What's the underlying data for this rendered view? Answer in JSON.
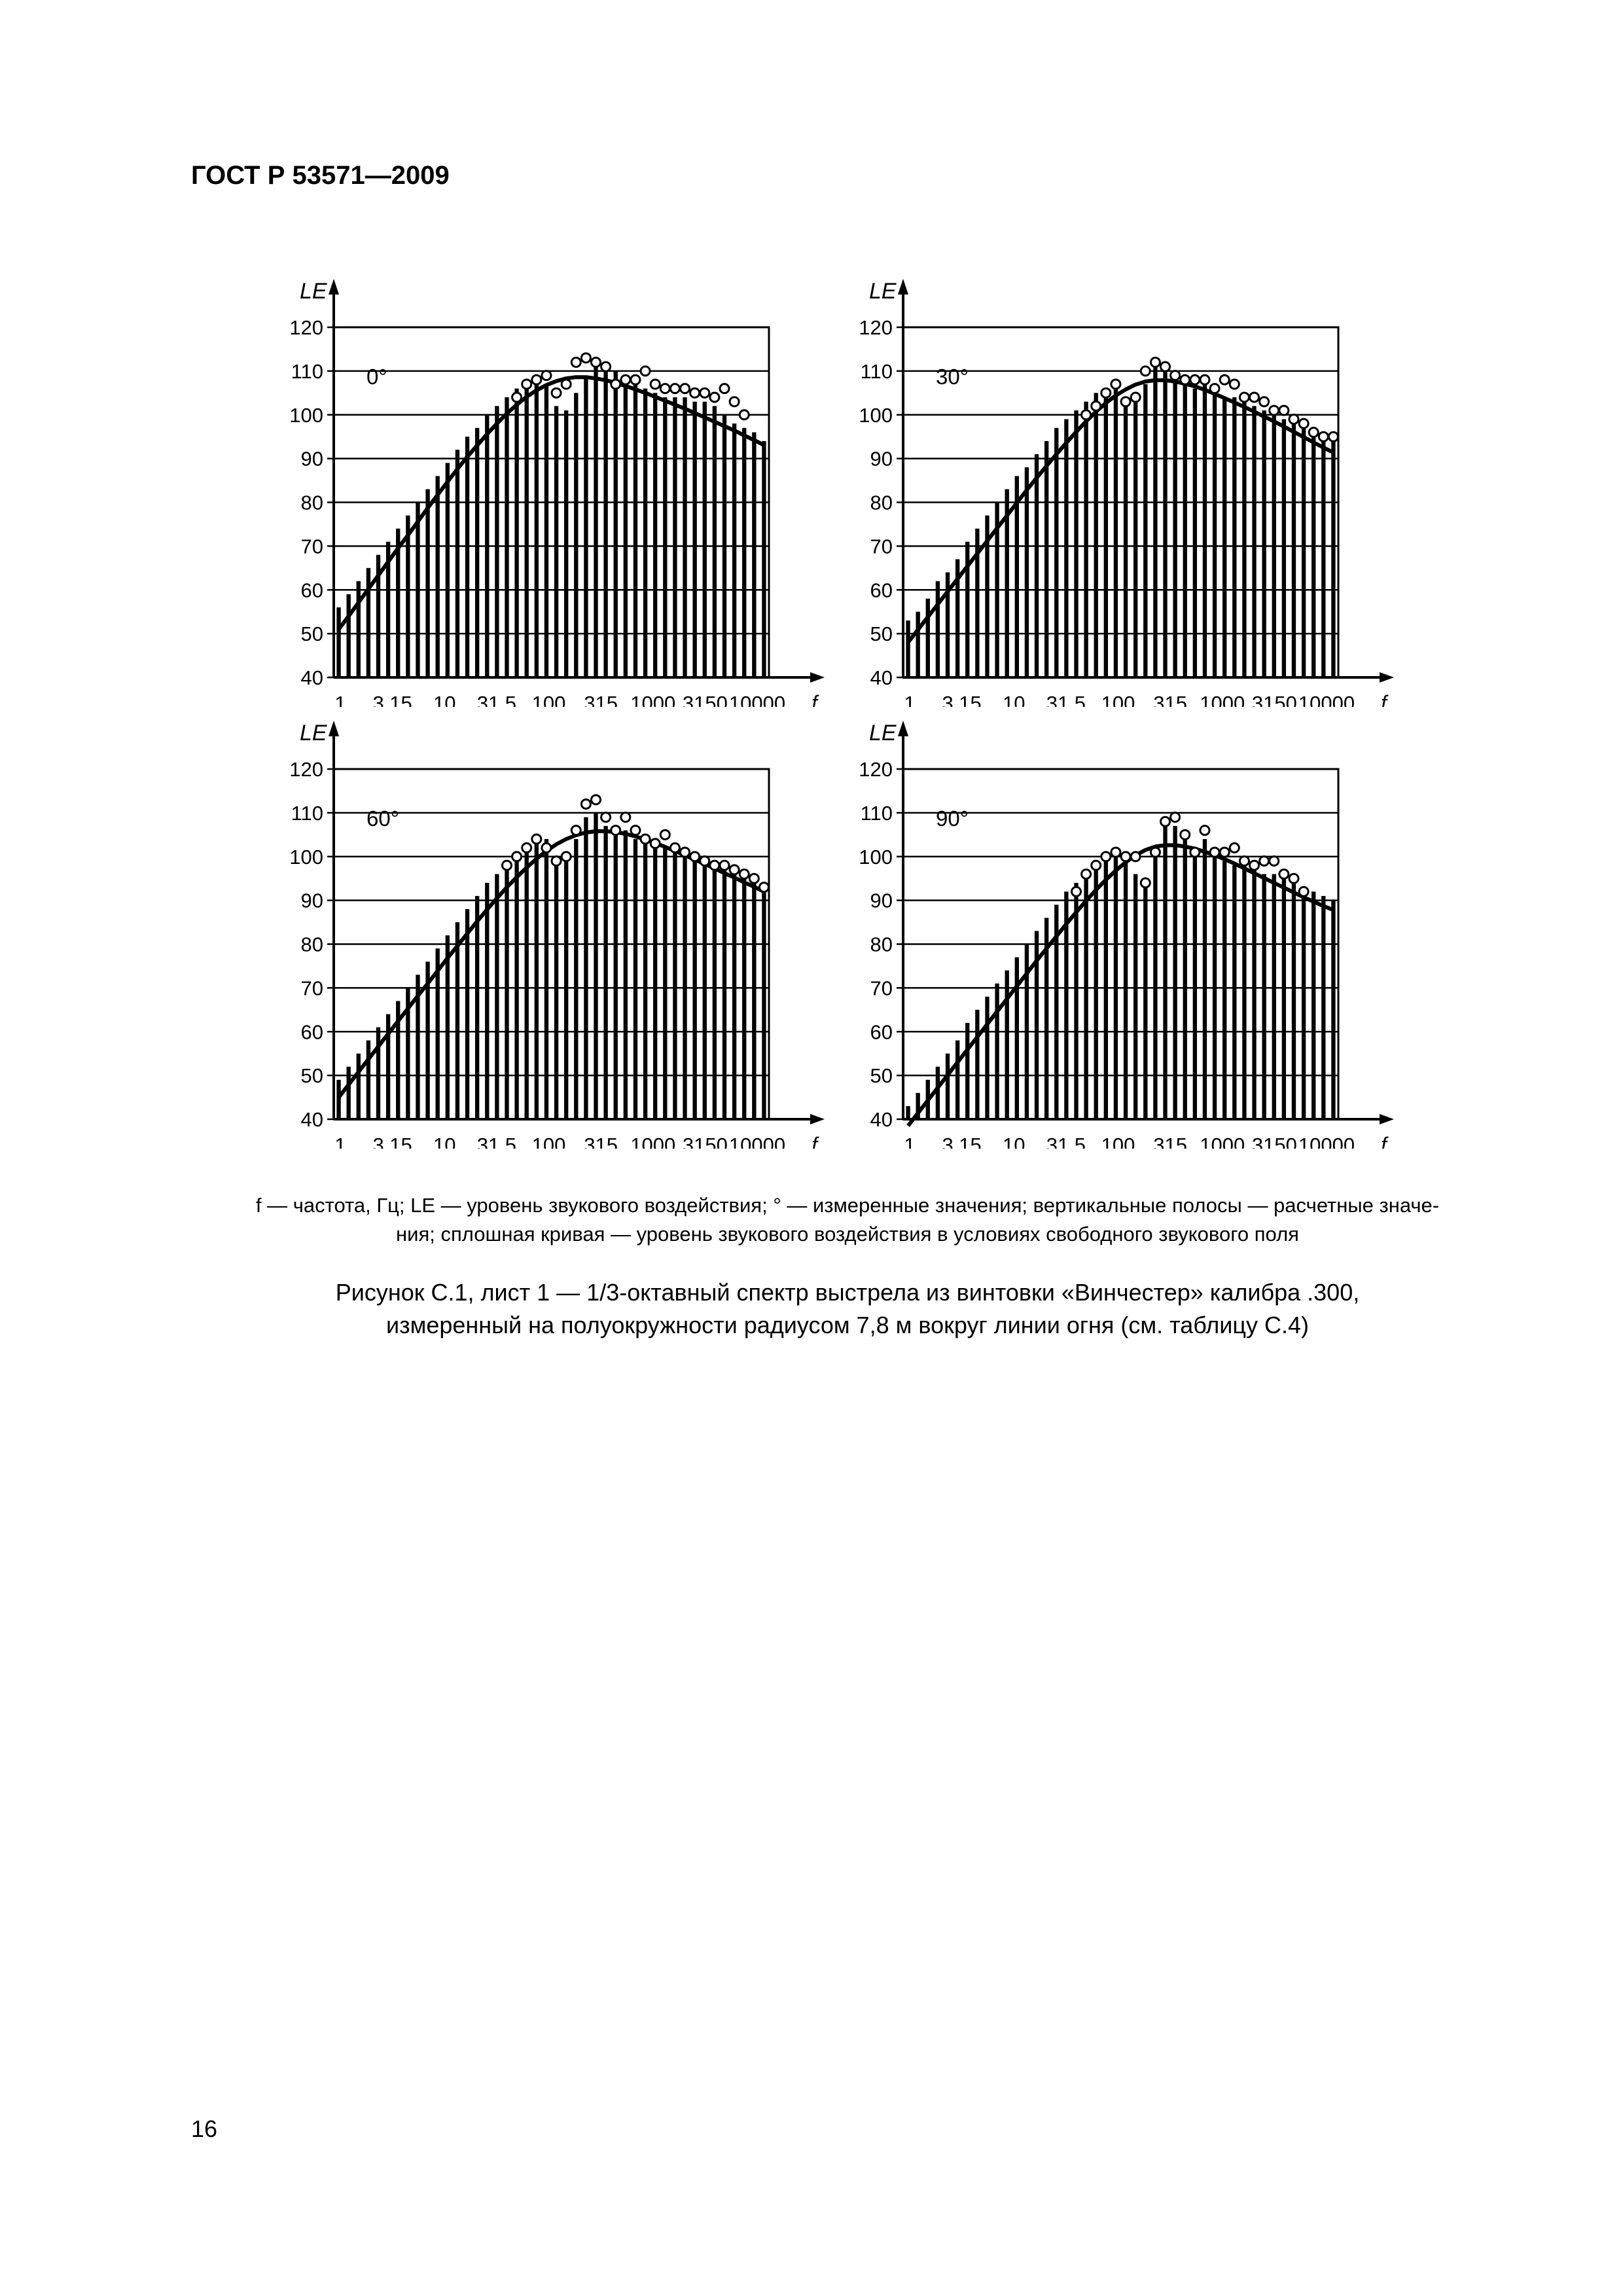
{
  "header": {
    "doc_id": "ГОСТ Р 53571—2009"
  },
  "page_number": "16",
  "legend": {
    "line1": "f — частота, Гц; LE — уровень звукового воздействия; ° — измеренные значения; вертикальные полосы — расчетные значе-",
    "line2": "ния; сплошная кривая — уровень звукового воздействия в условиях свободного звукового поля"
  },
  "caption": {
    "line1": "Рисунок С.1, лист 1 — 1/3-октавный спектр выстрела из винтовки «Винчестер» калибра .300,",
    "line2": "измеренный на полуокружности радиусом 7,8 м вокруг линии огня (см. таблицу С.4)"
  },
  "chart_data": [
    {
      "type": "bar",
      "label": "0°",
      "ylabel": "LE",
      "xlabel": "f",
      "ylim": [
        40,
        120
      ],
      "yticks": [
        40,
        50,
        60,
        70,
        80,
        90,
        100,
        110,
        120
      ],
      "xtick_labels": [
        "1",
        "3,15",
        "10",
        "31,5",
        "100",
        "315",
        "1000",
        "3150",
        "10000"
      ],
      "x_scale": "log",
      "grid": "horizontal",
      "bars": [
        56,
        59,
        62,
        65,
        68,
        71,
        74,
        77,
        80,
        83,
        86,
        89,
        92,
        95,
        97,
        100,
        102,
        104,
        106,
        107,
        108,
        107,
        102,
        101,
        105,
        109,
        112,
        111,
        110,
        109,
        108,
        106,
        105,
        104,
        104,
        104,
        103,
        103,
        102,
        100,
        98,
        97,
        96,
        94
      ],
      "measured": [
        null,
        null,
        null,
        null,
        null,
        null,
        null,
        null,
        null,
        null,
        null,
        null,
        null,
        null,
        null,
        null,
        null,
        null,
        104,
        107,
        108,
        109,
        105,
        107,
        112,
        113,
        112,
        111,
        107,
        108,
        108,
        110,
        107,
        106,
        106,
        106,
        105,
        105,
        104,
        106,
        103,
        100,
        null,
        null
      ],
      "curve": [
        51,
        54,
        57.1,
        60.2,
        63.3,
        66.4,
        69.5,
        72.5,
        75.6,
        78.7,
        81.7,
        84.7,
        87.6,
        90.4,
        93,
        95.6,
        98,
        100.3,
        102.3,
        104.1,
        105.6,
        106.8,
        107.7,
        108.3,
        108.6,
        108.6,
        108.3,
        107.9,
        107.3,
        106.6,
        105.8,
        105,
        104.1,
        103.2,
        102.3,
        101.4,
        100.4,
        99.4,
        98.4,
        97.4,
        96.4,
        95.3,
        94.2,
        93.1
      ]
    },
    {
      "type": "bar",
      "label": "30°",
      "ylabel": "LE",
      "xlabel": "f",
      "ylim": [
        40,
        120
      ],
      "yticks": [
        40,
        50,
        60,
        70,
        80,
        90,
        100,
        110,
        120
      ],
      "xtick_labels": [
        "1",
        "3,15",
        "10",
        "31,5",
        "100",
        "315",
        "1000",
        "3150",
        "10000"
      ],
      "x_scale": "log",
      "grid": "horizontal",
      "bars": [
        53,
        55,
        58,
        62,
        64,
        67,
        71,
        74,
        77,
        80,
        83,
        86,
        88,
        91,
        94,
        97,
        99,
        101,
        103,
        105,
        106,
        106,
        103,
        104,
        107,
        111,
        110,
        108,
        107,
        106,
        107,
        105,
        104,
        104,
        103,
        102,
        101,
        100,
        99,
        98,
        97,
        96,
        95,
        94
      ],
      "measured": [
        null,
        null,
        null,
        null,
        null,
        null,
        null,
        null,
        null,
        null,
        null,
        null,
        null,
        null,
        null,
        null,
        null,
        null,
        100,
        102,
        105,
        107,
        103,
        104,
        110,
        112,
        111,
        109,
        108,
        108,
        108,
        106,
        108,
        107,
        104,
        104,
        103,
        101,
        101,
        99,
        98,
        96,
        95,
        95
      ],
      "curve": [
        48,
        50.9,
        53.8,
        56.7,
        59.6,
        62.5,
        65.4,
        68.3,
        71.2,
        74.1,
        77,
        79.9,
        82.8,
        85.6,
        88.3,
        91,
        93.6,
        96.1,
        98.5,
        100.7,
        102.7,
        104.4,
        105.8,
        106.9,
        107.6,
        107.9,
        107.9,
        107.6,
        107.1,
        106.5,
        105.7,
        104.8,
        103.8,
        102.8,
        101.8,
        100.7,
        99.6,
        98.5,
        97.3,
        96.1,
        94.9,
        93.7,
        92.5,
        91.4
      ]
    },
    {
      "type": "bar",
      "label": "60°",
      "ylabel": "LE",
      "xlabel": "f",
      "ylim": [
        40,
        120
      ],
      "yticks": [
        40,
        50,
        60,
        70,
        80,
        90,
        100,
        110,
        120
      ],
      "xtick_labels": [
        "1",
        "3,15",
        "10",
        "31,5",
        "100",
        "315",
        "1000",
        "3150",
        "10000"
      ],
      "x_scale": "log",
      "grid": "horizontal",
      "bars": [
        49,
        52,
        55,
        58,
        61,
        64,
        67,
        70,
        73,
        76,
        79,
        82,
        85,
        88,
        91,
        94,
        96,
        98,
        100,
        102,
        103,
        104,
        99,
        100,
        104,
        109,
        110,
        107,
        107,
        106,
        104,
        103,
        102,
        102,
        101,
        100,
        99,
        99,
        98,
        97,
        96,
        95,
        94,
        93
      ],
      "measured": [
        null,
        null,
        null,
        null,
        null,
        null,
        null,
        null,
        null,
        null,
        null,
        null,
        null,
        null,
        null,
        null,
        null,
        98,
        100,
        102,
        104,
        102,
        99,
        100,
        106,
        112,
        113,
        109,
        106,
        109,
        106,
        104,
        103,
        105,
        102,
        101,
        100,
        99,
        98,
        98,
        97,
        96,
        95,
        93
      ],
      "curve": [
        45,
        47.9,
        50.8,
        53.7,
        56.6,
        59.5,
        62.4,
        65.3,
        68.2,
        71,
        73.9,
        76.8,
        79.6,
        82.4,
        85.2,
        87.9,
        90.5,
        93,
        95.3,
        97.5,
        99.5,
        101.3,
        102.8,
        104,
        104.9,
        105.5,
        105.8,
        105.8,
        105.6,
        105.2,
        104.6,
        103.9,
        103.1,
        102.2,
        101.3,
        100.3,
        99.3,
        98.3,
        97.3,
        96.2,
        95.2,
        94.1,
        93.1,
        92
      ]
    },
    {
      "type": "bar",
      "label": "90°",
      "ylabel": "LE",
      "xlabel": "f",
      "ylim": [
        40,
        120
      ],
      "yticks": [
        40,
        50,
        60,
        70,
        80,
        90,
        100,
        110,
        120
      ],
      "xtick_labels": [
        "1",
        "3,15",
        "10",
        "31,5",
        "100",
        "315",
        "1000",
        "3150",
        "10000"
      ],
      "x_scale": "log",
      "grid": "horizontal",
      "bars": [
        43,
        46,
        49,
        52,
        55,
        58,
        62,
        65,
        68,
        71,
        74,
        77,
        80,
        83,
        86,
        89,
        92,
        94,
        96,
        98,
        99,
        100,
        100,
        96,
        94,
        101,
        107,
        107,
        104,
        101,
        104,
        100,
        99,
        98,
        98,
        97,
        96,
        96,
        95,
        94,
        93,
        92,
        91,
        90
      ],
      "measured": [
        null,
        null,
        null,
        null,
        null,
        null,
        null,
        null,
        null,
        null,
        null,
        null,
        null,
        null,
        null,
        null,
        null,
        92,
        96,
        98,
        100,
        101,
        100,
        100,
        94,
        101,
        108,
        109,
        105,
        101,
        106,
        101,
        101,
        102,
        99,
        98,
        99,
        99,
        96,
        95,
        92,
        null,
        null,
        null
      ],
      "curve": [
        38.5,
        41.4,
        44.3,
        47.2,
        50.1,
        53,
        55.9,
        58.8,
        61.7,
        64.6,
        67.5,
        70.4,
        73.3,
        76.2,
        79,
        81.8,
        84.6,
        87.3,
        89.9,
        92.4,
        94.7,
        96.8,
        98.7,
        100.3,
        101.5,
        102.3,
        102.6,
        102.6,
        102.3,
        101.8,
        101.1,
        100.3,
        99.4,
        98.4,
        97.3,
        96.2,
        95.1,
        94,
        92.9,
        91.8,
        90.7,
        89.7,
        88.7,
        87.8
      ]
    }
  ]
}
